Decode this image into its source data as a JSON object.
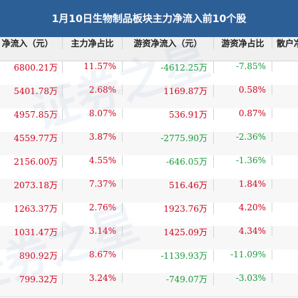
{
  "title": "1月10日生物制品板块主力净流入前10个股",
  "headers": [
    "净流入（元）",
    "主力净占比",
    "游资净流入（元）",
    "游资净占比",
    "散户净"
  ],
  "rows": [
    {
      "main_inflow": "6800.21万",
      "main_ratio": "11.57%",
      "hot_inflow": "-4612.25万",
      "hot_ratio": "-7.85%"
    },
    {
      "main_inflow": "5401.78万",
      "main_ratio": "2.68%",
      "hot_inflow": "1169.87万",
      "hot_ratio": "0.58%"
    },
    {
      "main_inflow": "4957.85万",
      "main_ratio": "8.07%",
      "hot_inflow": "536.91万",
      "hot_ratio": "0.87%"
    },
    {
      "main_inflow": "4559.77万",
      "main_ratio": "3.87%",
      "hot_inflow": "-2775.90万",
      "hot_ratio": "-2.36%"
    },
    {
      "main_inflow": "2156.00万",
      "main_ratio": "4.55%",
      "hot_inflow": "-646.05万",
      "hot_ratio": "-1.36%"
    },
    {
      "main_inflow": "2073.18万",
      "main_ratio": "7.37%",
      "hot_inflow": "516.46万",
      "hot_ratio": "1.84%"
    },
    {
      "main_inflow": "1263.37万",
      "main_ratio": "2.76%",
      "hot_inflow": "1923.76万",
      "hot_ratio": "4.20%"
    },
    {
      "main_inflow": "1031.47万",
      "main_ratio": "3.14%",
      "hot_inflow": "1425.09万",
      "hot_ratio": "4.34%"
    },
    {
      "main_inflow": "890.92万",
      "main_ratio": "8.67%",
      "hot_inflow": "-1139.93万",
      "hot_ratio": "-11.09%"
    },
    {
      "main_inflow": "799.32万",
      "main_ratio": "3.24%",
      "hot_inflow": "-749.07万",
      "hot_ratio": "-3.03%"
    }
  ],
  "watermark": "证券之星",
  "colors": {
    "header_bg": "#2d5f97",
    "positive": "#d0021b",
    "negative": "#1a9a3b",
    "row_alt": "#f7f7f7"
  }
}
